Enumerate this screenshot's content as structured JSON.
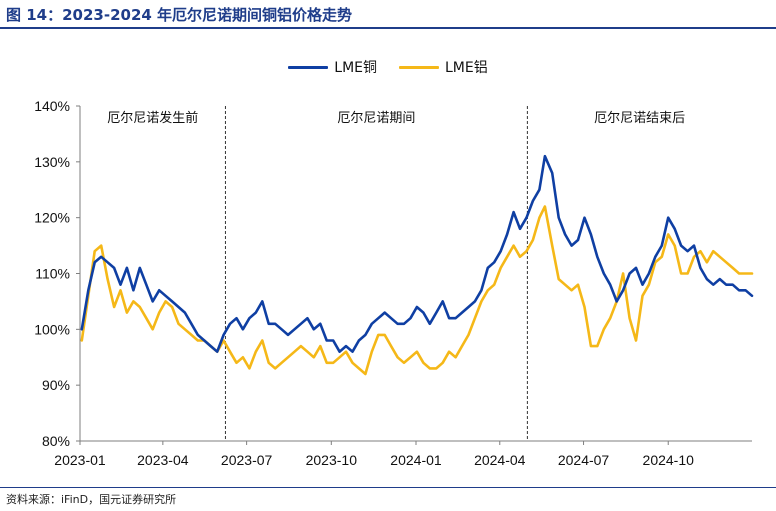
{
  "figure": {
    "title": "图 14：2023-2024 年厄尔尼诺期间铜铝价格走势",
    "source": "资料来源：iFinD，国元证券研究所"
  },
  "colors": {
    "copper": "#0f3fa3",
    "aluminum": "#f5b818",
    "accent": "#1f3d8a"
  },
  "chart_data": {
    "type": "line",
    "title": "",
    "xlabel": "",
    "ylabel": "",
    "ylim": [
      0.8,
      1.4
    ],
    "xlim": [
      "2023-01-01",
      "2024-12-31"
    ],
    "yticks": [
      "80%",
      "90%",
      "100%",
      "110%",
      "120%",
      "130%",
      "140%"
    ],
    "xticks": [
      "2023-01",
      "2023-04",
      "2023-07",
      "2023-10",
      "2024-01",
      "2024-04",
      "2024-07",
      "2024-10"
    ],
    "grid": false,
    "legend": "top-center",
    "annotations": [
      {
        "label": "厄尔尼诺发生前",
        "period": [
          "2023-01-01",
          "2023-06-08"
        ]
      },
      {
        "label": "厄尔尼诺期间",
        "period": [
          "2023-06-08",
          "2024-05-01"
        ]
      },
      {
        "label": "厄尔尼诺结束后",
        "period": [
          "2024-05-01",
          "2024-12-31"
        ]
      }
    ],
    "vlines": [
      "2023-06-08",
      "2024-05-01"
    ],
    "series": [
      {
        "name": "LME铜",
        "x": [
          "2023-01-03",
          "2023-01-10",
          "2023-01-17",
          "2023-01-24",
          "2023-01-31",
          "2023-02-07",
          "2023-02-14",
          "2023-02-21",
          "2023-02-28",
          "2023-03-07",
          "2023-03-14",
          "2023-03-21",
          "2023-03-28",
          "2023-04-04",
          "2023-04-11",
          "2023-04-18",
          "2023-04-25",
          "2023-05-02",
          "2023-05-09",
          "2023-05-16",
          "2023-05-23",
          "2023-05-30",
          "2023-06-06",
          "2023-06-13",
          "2023-06-20",
          "2023-06-27",
          "2023-07-04",
          "2023-07-11",
          "2023-07-18",
          "2023-07-25",
          "2023-08-01",
          "2023-08-08",
          "2023-08-15",
          "2023-08-22",
          "2023-08-29",
          "2023-09-05",
          "2023-09-12",
          "2023-09-19",
          "2023-09-26",
          "2023-10-03",
          "2023-10-10",
          "2023-10-17",
          "2023-10-24",
          "2023-10-31",
          "2023-11-07",
          "2023-11-14",
          "2023-11-21",
          "2023-11-28",
          "2023-12-05",
          "2023-12-12",
          "2023-12-19",
          "2023-12-26",
          "2024-01-02",
          "2024-01-09",
          "2024-01-16",
          "2024-01-23",
          "2024-01-30",
          "2024-02-06",
          "2024-02-13",
          "2024-02-20",
          "2024-02-27",
          "2024-03-05",
          "2024-03-12",
          "2024-03-19",
          "2024-03-26",
          "2024-04-02",
          "2024-04-09",
          "2024-04-16",
          "2024-04-23",
          "2024-04-30",
          "2024-05-07",
          "2024-05-14",
          "2024-05-20",
          "2024-05-28",
          "2024-06-04",
          "2024-06-11",
          "2024-06-18",
          "2024-06-25",
          "2024-07-02",
          "2024-07-09",
          "2024-07-16",
          "2024-07-23",
          "2024-07-30",
          "2024-08-06",
          "2024-08-13",
          "2024-08-20",
          "2024-08-27",
          "2024-09-03",
          "2024-09-10",
          "2024-09-17",
          "2024-09-24",
          "2024-10-01",
          "2024-10-08",
          "2024-10-15",
          "2024-10-22",
          "2024-10-29",
          "2024-11-05",
          "2024-11-12",
          "2024-11-19",
          "2024-11-26",
          "2024-12-03",
          "2024-12-10",
          "2024-12-17",
          "2024-12-24",
          "2024-12-31"
        ],
        "values": [
          1.0,
          1.07,
          1.12,
          1.13,
          1.12,
          1.11,
          1.08,
          1.11,
          1.07,
          1.11,
          1.08,
          1.05,
          1.07,
          1.06,
          1.05,
          1.04,
          1.03,
          1.01,
          0.99,
          0.98,
          0.97,
          0.96,
          0.99,
          1.01,
          1.02,
          1.0,
          1.02,
          1.03,
          1.05,
          1.01,
          1.01,
          1.0,
          0.99,
          1.0,
          1.01,
          1.02,
          1.0,
          1.01,
          0.98,
          0.98,
          0.96,
          0.97,
          0.96,
          0.98,
          0.99,
          1.01,
          1.02,
          1.03,
          1.02,
          1.01,
          1.01,
          1.02,
          1.04,
          1.03,
          1.01,
          1.03,
          1.05,
          1.02,
          1.02,
          1.03,
          1.04,
          1.05,
          1.07,
          1.11,
          1.12,
          1.14,
          1.17,
          1.21,
          1.18,
          1.2,
          1.23,
          1.25,
          1.31,
          1.28,
          1.2,
          1.17,
          1.15,
          1.16,
          1.2,
          1.17,
          1.13,
          1.1,
          1.08,
          1.05,
          1.07,
          1.1,
          1.11,
          1.08,
          1.1,
          1.13,
          1.15,
          1.2,
          1.18,
          1.15,
          1.14,
          1.15,
          1.11,
          1.09,
          1.08,
          1.09,
          1.08,
          1.08,
          1.07,
          1.07,
          1.06
        ]
      },
      {
        "name": "LME铝",
        "x": [
          "2023-01-03",
          "2023-01-10",
          "2023-01-17",
          "2023-01-24",
          "2023-01-31",
          "2023-02-07",
          "2023-02-14",
          "2023-02-21",
          "2023-02-28",
          "2023-03-07",
          "2023-03-14",
          "2023-03-21",
          "2023-03-28",
          "2023-04-04",
          "2023-04-11",
          "2023-04-18",
          "2023-04-25",
          "2023-05-02",
          "2023-05-09",
          "2023-05-16",
          "2023-05-23",
          "2023-05-30",
          "2023-06-06",
          "2023-06-13",
          "2023-06-20",
          "2023-06-27",
          "2023-07-04",
          "2023-07-11",
          "2023-07-18",
          "2023-07-25",
          "2023-08-01",
          "2023-08-08",
          "2023-08-15",
          "2023-08-22",
          "2023-08-29",
          "2023-09-05",
          "2023-09-12",
          "2023-09-19",
          "2023-09-26",
          "2023-10-03",
          "2023-10-10",
          "2023-10-17",
          "2023-10-24",
          "2023-10-31",
          "2023-11-07",
          "2023-11-14",
          "2023-11-21",
          "2023-11-28",
          "2023-12-05",
          "2023-12-12",
          "2023-12-19",
          "2023-12-26",
          "2024-01-02",
          "2024-01-09",
          "2024-01-16",
          "2024-01-23",
          "2024-01-30",
          "2024-02-06",
          "2024-02-13",
          "2024-02-20",
          "2024-02-27",
          "2024-03-05",
          "2024-03-12",
          "2024-03-19",
          "2024-03-26",
          "2024-04-02",
          "2024-04-09",
          "2024-04-16",
          "2024-04-23",
          "2024-04-30",
          "2024-05-07",
          "2024-05-14",
          "2024-05-20",
          "2024-05-28",
          "2024-06-04",
          "2024-06-11",
          "2024-06-18",
          "2024-06-25",
          "2024-07-02",
          "2024-07-09",
          "2024-07-16",
          "2024-07-23",
          "2024-07-30",
          "2024-08-06",
          "2024-08-13",
          "2024-08-20",
          "2024-08-27",
          "2024-09-03",
          "2024-09-10",
          "2024-09-17",
          "2024-09-24",
          "2024-10-01",
          "2024-10-08",
          "2024-10-15",
          "2024-10-22",
          "2024-10-29",
          "2024-11-05",
          "2024-11-12",
          "2024-11-19",
          "2024-11-26",
          "2024-12-03",
          "2024-12-10",
          "2024-12-17",
          "2024-12-24",
          "2024-12-31"
        ],
        "values": [
          0.98,
          1.06,
          1.14,
          1.15,
          1.09,
          1.04,
          1.07,
          1.03,
          1.05,
          1.04,
          1.02,
          1.0,
          1.03,
          1.05,
          1.04,
          1.01,
          1.0,
          0.99,
          0.98,
          0.98,
          0.97,
          0.96,
          0.98,
          0.96,
          0.94,
          0.95,
          0.93,
          0.96,
          0.98,
          0.94,
          0.93,
          0.94,
          0.95,
          0.96,
          0.97,
          0.96,
          0.95,
          0.97,
          0.94,
          0.94,
          0.95,
          0.96,
          0.94,
          0.93,
          0.92,
          0.96,
          0.99,
          0.99,
          0.97,
          0.95,
          0.94,
          0.95,
          0.96,
          0.94,
          0.93,
          0.93,
          0.94,
          0.96,
          0.95,
          0.97,
          0.99,
          1.02,
          1.05,
          1.07,
          1.08,
          1.11,
          1.13,
          1.15,
          1.13,
          1.14,
          1.16,
          1.2,
          1.22,
          1.15,
          1.09,
          1.08,
          1.07,
          1.08,
          1.04,
          0.97,
          0.97,
          1.0,
          1.02,
          1.05,
          1.1,
          1.02,
          0.98,
          1.06,
          1.08,
          1.12,
          1.13,
          1.17,
          1.15,
          1.1,
          1.1,
          1.13,
          1.14,
          1.12,
          1.14,
          1.13,
          1.12,
          1.11,
          1.1,
          1.1,
          1.1
        ]
      }
    ]
  }
}
